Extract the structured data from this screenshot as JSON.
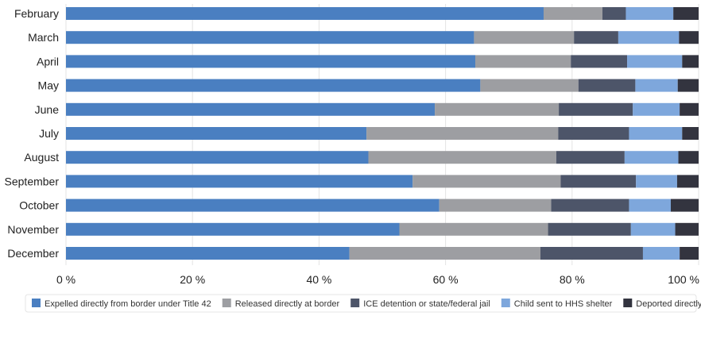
{
  "chart_data": {
    "type": "bar",
    "orientation": "horizontal",
    "stacked": true,
    "categories": [
      "February",
      "March",
      "April",
      "May",
      "June",
      "July",
      "August",
      "September",
      "October",
      "November",
      "December"
    ],
    "series": [
      {
        "name": "Expelled directly from border under Title 42",
        "color": "#4a7fc1",
        "values": [
          75.5,
          64.5,
          64.7,
          65.5,
          58.3,
          47.5,
          47.8,
          54.8,
          59.0,
          52.7,
          44.8
        ]
      },
      {
        "name": "Released directly at border",
        "color": "#9d9ea2",
        "values": [
          9.3,
          15.8,
          15.1,
          15.5,
          19.6,
          30.3,
          29.7,
          23.4,
          17.7,
          23.5,
          30.2
        ]
      },
      {
        "name": "ICE detention or state/federal jail",
        "color": "#4d5569",
        "values": [
          3.7,
          7.0,
          8.9,
          9.0,
          11.7,
          11.2,
          10.8,
          11.9,
          12.3,
          13.1,
          16.2
        ]
      },
      {
        "name": "Child sent to HHS shelter",
        "color": "#7ea7dc",
        "values": [
          7.5,
          9.6,
          8.7,
          6.7,
          7.4,
          8.4,
          8.5,
          6.5,
          6.6,
          7.0,
          5.8
        ]
      },
      {
        "name": "Deported directly from Border",
        "color": "#33343f",
        "values": [
          4.0,
          3.1,
          2.6,
          3.3,
          3.0,
          2.6,
          3.2,
          3.4,
          4.4,
          3.7,
          3.0
        ]
      }
    ],
    "xlim": [
      0,
      100
    ],
    "xticks": [
      0,
      20,
      40,
      60,
      80,
      100
    ],
    "xtick_labels": [
      "0 %",
      "20 %",
      "40 %",
      "60 %",
      "80 %",
      "100 %"
    ],
    "grid": "vertical",
    "legend_position": "bottom"
  }
}
